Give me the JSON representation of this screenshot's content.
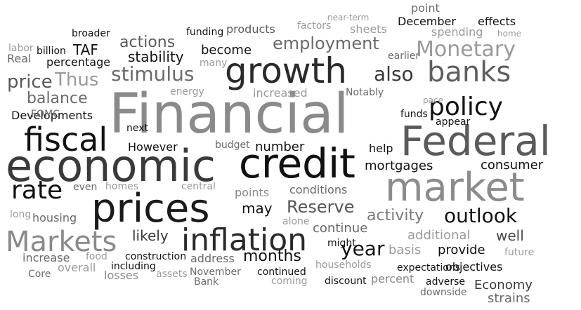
{
  "words": [
    {
      "text": "Financial",
      "color": "#8a8a8a"
    },
    {
      "text": "Federal",
      "color": "#5a5a5a"
    },
    {
      "text": "economic",
      "color": "#3a3a3a"
    },
    {
      "text": "credit",
      "color": "#111111"
    },
    {
      "text": "market",
      "color": "#8c8c8c"
    },
    {
      "text": "prices",
      "color": "#1a1a1a"
    },
    {
      "text": "growth",
      "color": "#2a2a2a"
    },
    {
      "text": "banks",
      "color": "#5f5f5f"
    },
    {
      "text": "policy",
      "color": "#111111"
    },
    {
      "text": "fiscal",
      "color": "#111111"
    },
    {
      "text": "inflation",
      "color": "#2a2a2a"
    },
    {
      "text": "Markets",
      "color": "#8a8a8a"
    },
    {
      "text": "rate",
      "color": "#111111"
    },
    {
      "text": "outlook",
      "color": "#111111"
    },
    {
      "text": "year",
      "color": "#111111"
    },
    {
      "text": "also",
      "color": "#3a3a3a"
    },
    {
      "text": "Monetary",
      "color": "#9a9a9a"
    },
    {
      "text": "stimulus",
      "color": "#6a6a6a"
    },
    {
      "text": "employment",
      "color": "#6a6a6a"
    },
    {
      "text": "credit",
      "color": "#111111"
    },
    {
      "text": "Reserve",
      "color": "#555555"
    },
    {
      "text": "price",
      "color": "#5a5a5a"
    },
    {
      "text": "Thus",
      "color": "#9a9a9a"
    },
    {
      "text": "balance",
      "color": "#6a6a6a"
    },
    {
      "text": "stability",
      "color": "#111111"
    },
    {
      "text": "actions",
      "color": "#5a5a5a"
    },
    {
      "text": "TAF",
      "color": "#111111"
    },
    {
      "text": "become",
      "color": "#111111"
    },
    {
      "text": "products",
      "color": "#5a5a5a"
    },
    {
      "text": "mortgages",
      "color": "#111111"
    },
    {
      "text": "consumer",
      "color": "#111111"
    },
    {
      "text": "number",
      "color": "#111111"
    },
    {
      "text": "conditions",
      "color": "#6a6a6a"
    },
    {
      "text": "points",
      "color": "#8a8a8a"
    },
    {
      "text": "may",
      "color": "#111111"
    },
    {
      "text": "activity",
      "color": "#7a7a7a"
    },
    {
      "text": "continue",
      "color": "#6a6a6a"
    },
    {
      "text": "additional",
      "color": "#9a9a9a"
    },
    {
      "text": "well",
      "color": "#4a4a4a"
    },
    {
      "text": "likely",
      "color": "#3a3a3a"
    },
    {
      "text": "housing",
      "color": "#6a6a6a"
    },
    {
      "text": "months",
      "color": "#111111"
    },
    {
      "text": "basis",
      "color": "#9a9a9a"
    },
    {
      "text": "provide",
      "color": "#111111"
    },
    {
      "text": "address",
      "color": "#6a6a6a"
    },
    {
      "text": "households",
      "color": "#9a9a9a"
    },
    {
      "text": "objectives",
      "color": "#111111"
    },
    {
      "text": "Economy",
      "color": "#3a3a3a"
    },
    {
      "text": "percent",
      "color": "#8a8a8a"
    },
    {
      "text": "overall",
      "color": "#9a9a9a"
    },
    {
      "text": "losses",
      "color": "#8a8a8a"
    },
    {
      "text": "increase",
      "color": "#6a6a6a"
    },
    {
      "text": "Developments",
      "color": "#111111"
    },
    {
      "text": "However",
      "color": "#111111"
    },
    {
      "text": "energy",
      "color": "#9a9a9a"
    },
    {
      "text": "increased",
      "color": "#9a9a9a"
    },
    {
      "text": "percentage",
      "color": "#111111"
    },
    {
      "text": "funding",
      "color": "#111111"
    },
    {
      "text": "sheets",
      "color": "#9a9a9a"
    },
    {
      "text": "December",
      "color": "#111111"
    },
    {
      "text": "effects",
      "color": "#111111"
    },
    {
      "text": "spending",
      "color": "#9a9a9a"
    },
    {
      "text": "point",
      "color": "#6a6a6a"
    },
    {
      "text": "factors",
      "color": "#9a9a9a"
    },
    {
      "text": "near-term",
      "color": "#9a9a9a"
    },
    {
      "text": "broader",
      "color": "#111111"
    },
    {
      "text": "billion",
      "color": "#111111"
    },
    {
      "text": "labor",
      "color": "#9a9a9a"
    },
    {
      "text": "Real",
      "color": "#6a6a6a"
    },
    {
      "text": "many",
      "color": "#9a9a9a"
    },
    {
      "text": "earlier",
      "color": "#6a6a6a"
    },
    {
      "text": "home",
      "color": "#9a9a9a"
    },
    {
      "text": "Notably",
      "color": "#6a6a6a"
    },
    {
      "text": "pace",
      "color": "#9a9a9a"
    },
    {
      "text": "funds",
      "color": "#111111"
    },
    {
      "text": "appear",
      "color": "#111111"
    },
    {
      "text": "FOMC",
      "color": "#6a6a6a"
    },
    {
      "text": "next",
      "color": "#111111"
    },
    {
      "text": "budget",
      "color": "#6a6a6a"
    },
    {
      "text": "help",
      "color": "#111111"
    },
    {
      "text": "even",
      "color": "#6a6a6a"
    },
    {
      "text": "homes",
      "color": "#9a9a9a"
    },
    {
      "text": "central",
      "color": "#9a9a9a"
    },
    {
      "text": "long",
      "color": "#9a9a9a"
    },
    {
      "text": "alone",
      "color": "#9a9a9a"
    },
    {
      "text": "might",
      "color": "#111111"
    },
    {
      "text": "food",
      "color": "#9a9a9a"
    },
    {
      "text": "construction",
      "color": "#111111"
    },
    {
      "text": "including",
      "color": "#111111"
    },
    {
      "text": "November",
      "color": "#6a6a6a"
    },
    {
      "text": "Bank",
      "color": "#6a6a6a"
    },
    {
      "text": "assets",
      "color": "#9a9a9a"
    },
    {
      "text": "Core",
      "color": "#6a6a6a"
    },
    {
      "text": "continued",
      "color": "#111111"
    },
    {
      "text": "coming",
      "color": "#9a9a9a"
    },
    {
      "text": "discount",
      "color": "#111111"
    },
    {
      "text": "expectations",
      "color": "#111111"
    },
    {
      "text": "adverse",
      "color": "#111111"
    },
    {
      "text": "downside",
      "color": "#6a6a6a"
    },
    {
      "text": "future",
      "color": "#9a9a9a"
    },
    {
      "text": "strains",
      "color": "#6a6a6a"
    }
  ]
}
